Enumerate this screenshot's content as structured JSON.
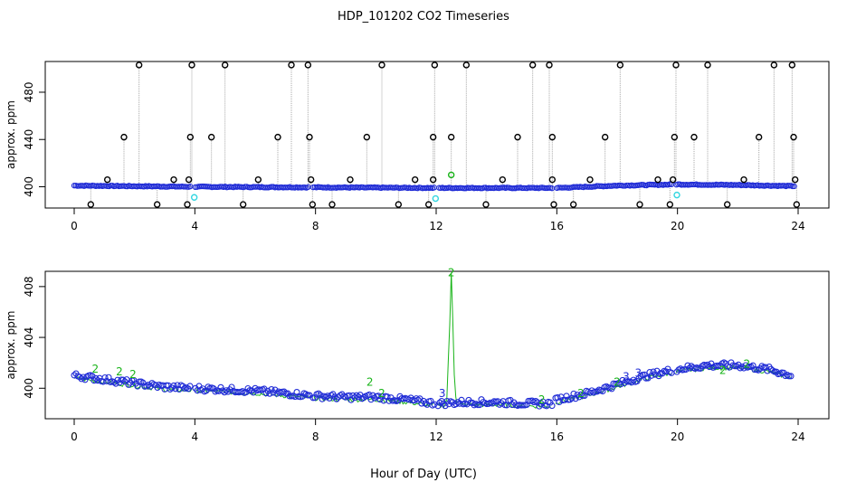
{
  "title": "HDP_101202  CO2 Timeseries",
  "xlabel": "Hour of Day (UTC)",
  "colors": {
    "main": "#1f2bd6",
    "flag2": "#19b419",
    "cyan": "#33d6e0",
    "outlier": "#000000",
    "line": "#a8a8a8"
  },
  "chart_data": [
    {
      "type": "scatter",
      "panel": "top",
      "ylabel": "approx. ppm",
      "xlim": [
        0,
        24
      ],
      "ylim": [
        382,
        506
      ],
      "xticks": [
        0,
        4,
        8,
        12,
        16,
        20,
        24
      ],
      "yticks": [
        400,
        440,
        480
      ],
      "gaps": [
        [
          3.9,
          4.0
        ],
        [
          7.8,
          7.9
        ],
        [
          11.95,
          12.05
        ],
        [
          15.85,
          15.95
        ],
        [
          19.85,
          19.95
        ]
      ],
      "baseline": [
        [
          0,
          401
        ],
        [
          2,
          400.5
        ],
        [
          4,
          400
        ],
        [
          8,
          399.5
        ],
        [
          12,
          399
        ],
        [
          16,
          399
        ],
        [
          18,
          401
        ],
        [
          20,
          402
        ],
        [
          22,
          401.5
        ],
        [
          24,
          400.5
        ]
      ],
      "outliers_high": [
        2.15,
        3.9,
        5.0,
        7.2,
        7.75,
        10.2,
        11.95,
        13.0,
        15.2,
        15.75,
        18.1,
        19.95,
        21.0,
        23.2,
        23.8
      ],
      "outliers_440": [
        1.65,
        3.85,
        4.55,
        6.75,
        7.8,
        9.7,
        11.9,
        12.5,
        14.7,
        15.85,
        17.6,
        19.9,
        20.55,
        22.7,
        23.85
      ],
      "outliers_410": [
        1.1,
        3.3,
        3.8,
        6.1,
        7.85,
        9.15,
        11.3,
        11.9,
        14.2,
        15.85,
        17.1,
        19.35,
        19.85,
        22.2,
        23.9
      ],
      "outliers_low": [
        0.55,
        2.75,
        3.75,
        5.6,
        7.9,
        8.55,
        10.75,
        11.75,
        13.65,
        15.9,
        16.55,
        18.75,
        19.75,
        21.65,
        23.95
      ],
      "cyan_points": [
        [
          3.98,
          391
        ],
        [
          11.98,
          390
        ],
        [
          19.98,
          393
        ]
      ],
      "green_points": [
        [
          12.5,
          410
        ]
      ]
    },
    {
      "type": "scatter",
      "panel": "bottom",
      "ylabel": "approx. ppm",
      "xlim": [
        0,
        24
      ],
      "ylim": [
        397.6,
        409.2
      ],
      "xticks": [
        0,
        4,
        8,
        12,
        16,
        20,
        24
      ],
      "yticks": [
        400,
        404,
        408
      ],
      "gaps": [
        [
          3.9,
          4.0
        ],
        [
          7.8,
          7.9
        ],
        [
          11.95,
          12.05
        ],
        [
          15.85,
          15.95
        ],
        [
          19.85,
          19.95
        ]
      ],
      "curve": [
        [
          0,
          401.0
        ],
        [
          1,
          400.7
        ],
        [
          2,
          400.4
        ],
        [
          3,
          400.1
        ],
        [
          4,
          400.0
        ],
        [
          5,
          399.9
        ],
        [
          6,
          399.8
        ],
        [
          7,
          399.6
        ],
        [
          8,
          399.4
        ],
        [
          9,
          399.3
        ],
        [
          10,
          399.3
        ],
        [
          11,
          399.1
        ],
        [
          12,
          398.8
        ],
        [
          13,
          398.9
        ],
        [
          14,
          398.9
        ],
        [
          15,
          398.8
        ],
        [
          15.85,
          398.8
        ],
        [
          16,
          399.1
        ],
        [
          17,
          399.6
        ],
        [
          18,
          400.3
        ],
        [
          19,
          401.0
        ],
        [
          20,
          401.5
        ],
        [
          21,
          401.8
        ],
        [
          22,
          401.8
        ],
        [
          23,
          401.5
        ],
        [
          23.8,
          401.0
        ]
      ],
      "spike": [
        [
          12.35,
          399.0
        ],
        [
          12.45,
          405.0
        ],
        [
          12.5,
          409.1
        ],
        [
          12.55,
          405.5
        ],
        [
          12.62,
          399.3
        ]
      ],
      "label_points": [
        {
          "x": 0.7,
          "y": 401.5,
          "label": "2"
        },
        {
          "x": 1.5,
          "y": 401.3,
          "label": "2"
        },
        {
          "x": 1.95,
          "y": 401.1,
          "label": "2"
        },
        {
          "x": 9.8,
          "y": 400.5,
          "label": "2"
        },
        {
          "x": 10.2,
          "y": 399.6,
          "label": "2"
        },
        {
          "x": 12.5,
          "y": 409.1,
          "label": "2"
        },
        {
          "x": 12.2,
          "y": 399.6,
          "label": "3"
        },
        {
          "x": 15.5,
          "y": 399.1,
          "label": "2"
        },
        {
          "x": 16.8,
          "y": 399.6,
          "label": "2"
        },
        {
          "x": 18.0,
          "y": 400.5,
          "label": "2"
        },
        {
          "x": 18.3,
          "y": 400.9,
          "label": "3"
        },
        {
          "x": 18.7,
          "y": 401.2,
          "label": "3"
        },
        {
          "x": 21.5,
          "y": 401.4,
          "label": "2"
        },
        {
          "x": 22.3,
          "y": 401.9,
          "label": "2"
        }
      ]
    }
  ]
}
